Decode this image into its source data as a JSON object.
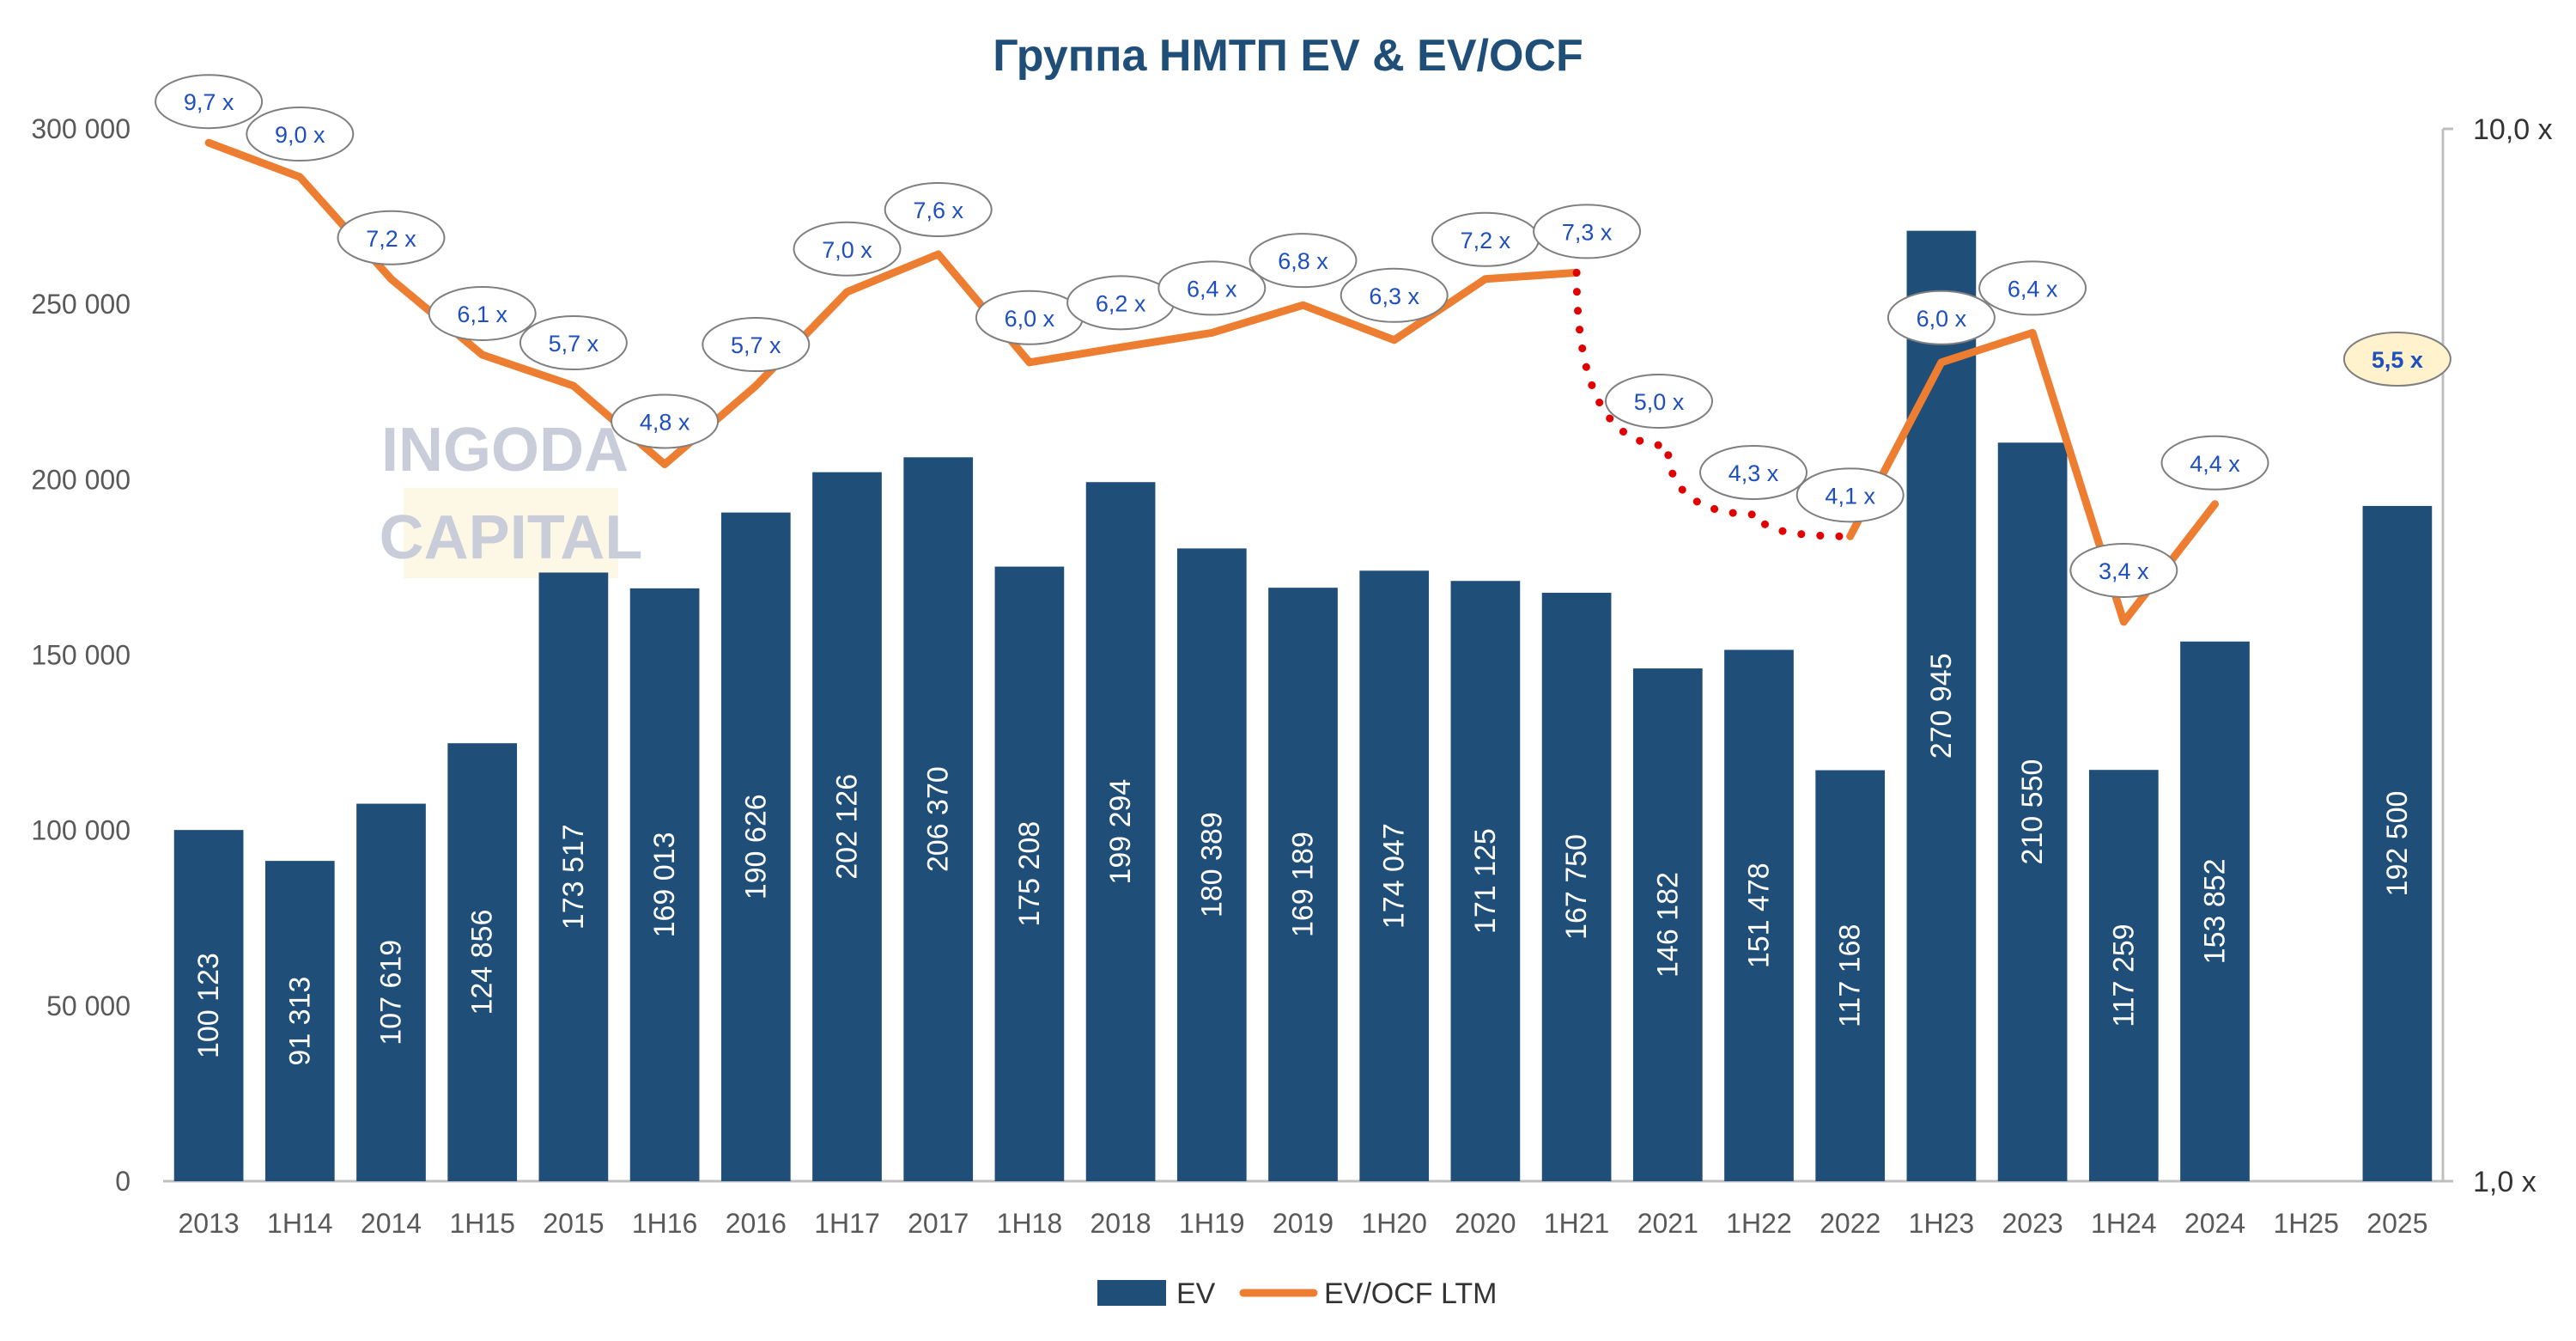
{
  "chart_data": {
    "type": "bar",
    "title": "Группа НМТП EV & EV/OCF",
    "categories": [
      "2013",
      "1H14",
      "2014",
      "1H15",
      "2015",
      "1H16",
      "2016",
      "1H17",
      "2017",
      "1H18",
      "2018",
      "1H19",
      "2019",
      "1H20",
      "2020",
      "1H21",
      "2021",
      "1H22",
      "2022",
      "1H23",
      "2023",
      "1H24",
      "2024",
      "1H25",
      "2025"
    ],
    "y_left": {
      "range": [
        0,
        300000
      ],
      "ticks": [
        "0",
        "50 000",
        "100 000",
        "150 000",
        "200 000",
        "250 000",
        "300 000"
      ]
    },
    "y_right": {
      "scale": "log",
      "range": [
        1,
        10
      ],
      "ticks": [
        "1,0 x",
        "10,0 x"
      ]
    },
    "grid": false,
    "legend_position": "bottom",
    "series": [
      {
        "name": "EV",
        "type": "bar",
        "axis": "left",
        "color": "#1f4e79",
        "values": [
          100123,
          91313,
          107619,
          124856,
          173517,
          169013,
          190626,
          202126,
          206370,
          175208,
          199294,
          180389,
          169189,
          174047,
          171125,
          167750,
          146182,
          151478,
          117168,
          270945,
          210550,
          117259,
          153852,
          null,
          192500
        ],
        "labels": [
          "100 123",
          "91 313",
          "107 619",
          "124 856",
          "173 517",
          "169 013",
          "190 626",
          "202 126",
          "206 370",
          "175 208",
          "199 294",
          "180 389",
          "169 189",
          "174 047",
          "171 125",
          "167 750",
          "146 182",
          "151 478",
          "117 168",
          "270 945",
          "210 550",
          "117 259",
          "153 852",
          "",
          "192 500"
        ]
      },
      {
        "name": "EV/OCF LTM",
        "type": "line",
        "axis": "right",
        "color": "#ed7d31",
        "values": [
          9.7,
          9.0,
          7.2,
          6.1,
          5.7,
          4.8,
          5.7,
          7.0,
          7.6,
          6.0,
          6.2,
          6.4,
          6.8,
          6.3,
          7.2,
          7.3,
          5.0,
          4.3,
          4.1,
          6.0,
          6.4,
          3.4,
          4.4,
          null,
          5.5
        ],
        "labels": [
          "9,7 x",
          "9,0 x",
          "7,2 x",
          "6,1 x",
          "5,7 x",
          "4,8 x",
          "5,7 x",
          "7,0 x",
          "7,6 x",
          "6,0 x",
          "6,2 x",
          "6,4 x",
          "6,8 x",
          "6,3 x",
          "7,2 x",
          "7,3 x",
          "5,0 x",
          "4,3 x",
          "4,1 x",
          "6,0 x",
          "6,4 x",
          "3,4 x",
          "4,4 x",
          "",
          "5,5 x"
        ],
        "dotted_segment": {
          "color": "#e00000",
          "from_category": "1H21",
          "to_category": "2022"
        },
        "highlighted_point": {
          "category": "2025",
          "fill": "#fff2cc"
        }
      }
    ]
  },
  "watermark": {
    "line1": "INGODA",
    "line2": "CAPITAL"
  },
  "colors": {
    "title": "#1f4e79",
    "bar": "#1f4e79",
    "line": "#ed7d31",
    "dotted": "#e00000",
    "label_text": "#1f4fbf"
  }
}
